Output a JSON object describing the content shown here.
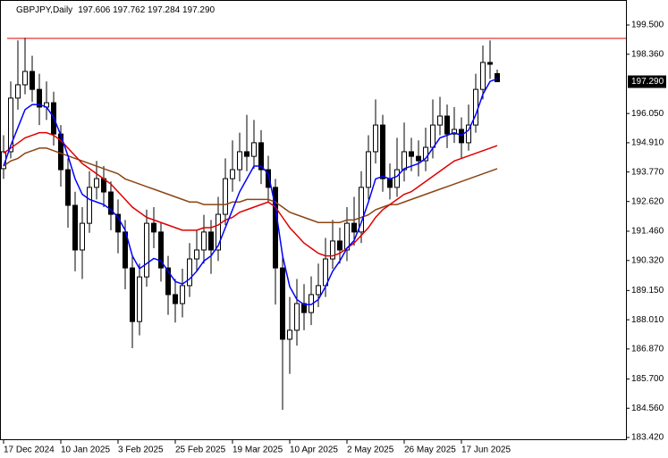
{
  "chart_data": {
    "type": "candlestick",
    "title": "GBPJPY,Daily",
    "subtitle": "197.606 197.762 197.284 197.290",
    "categories": [
      "17 Dec 2024",
      null,
      null,
      null,
      null,
      null,
      null,
      null,
      "10 Jan 2025",
      null,
      null,
      null,
      null,
      null,
      null,
      null,
      "3 Feb 2025",
      null,
      null,
      null,
      null,
      null,
      null,
      null,
      "25 Feb 2025",
      null,
      null,
      null,
      null,
      null,
      null,
      null,
      "19 Mar 2025",
      null,
      null,
      null,
      null,
      null,
      null,
      null,
      "10 Apr 2025",
      null,
      null,
      null,
      null,
      null,
      null,
      null,
      "2 May 2025",
      null,
      null,
      null,
      null,
      null,
      null,
      null,
      "26 May 2025",
      null,
      null,
      null,
      null,
      null,
      null,
      null,
      "17 Jun 2025",
      null,
      null,
      null,
      null,
      null
    ],
    "open": [
      193.9,
      194.56,
      196.65,
      197.17,
      197.69,
      196.99,
      196.3,
      196.47,
      195.25,
      193.86,
      192.47,
      190.73,
      191.77,
      193.17,
      193.51,
      192.99,
      192.12,
      191.43,
      190.03,
      187.94,
      189.68,
      191.77,
      191.43,
      190.03,
      188.99,
      188.64,
      189.34,
      190.38,
      190.73,
      191.43,
      190.73,
      192.12,
      193.51,
      193.86,
      194.56,
      194.38,
      194.91,
      193.86,
      193.17,
      190.03,
      187.25,
      187.6,
      188.64,
      188.29,
      188.99,
      189.34,
      190.38,
      191.08,
      190.73,
      191.77,
      191.43,
      193.17,
      194.56,
      195.6,
      193.51,
      193.17,
      193.86,
      194.56,
      194.38,
      194.21,
      194.73,
      195.6,
      195.95,
      195.25,
      195.43,
      194.91,
      195.6,
      196.99,
      198.04,
      197.606
    ],
    "high": [
      195.2,
      197.3,
      198.9,
      199.0,
      198.3,
      197.6,
      197.3,
      196.9,
      195.6,
      194.3,
      193.0,
      192.4,
      193.8,
      194.2,
      194.0,
      193.4,
      192.7,
      191.9,
      190.5,
      190.2,
      192.3,
      192.4,
      191.8,
      190.5,
      189.6,
      190.0,
      191.0,
      191.5,
      192.1,
      191.9,
      192.8,
      194.3,
      195.0,
      195.3,
      196.0,
      195.8,
      195.4,
      194.4,
      193.5,
      190.6,
      188.9,
      189.6,
      189.4,
      189.7,
      190.2,
      191.2,
      191.9,
      191.6,
      192.4,
      192.8,
      193.8,
      195.2,
      196.6,
      196.0,
      194.1,
      195.1,
      195.7,
      195.1,
      195.0,
      195.5,
      196.6,
      196.7,
      196.4,
      196.3,
      195.9,
      196.4,
      197.6,
      198.7,
      198.9,
      197.762
    ],
    "low": [
      193.5,
      194.3,
      196.2,
      196.8,
      196.5,
      195.6,
      195.8,
      194.8,
      193.2,
      191.6,
      189.9,
      189.6,
      191.4,
      192.7,
      192.4,
      191.5,
      190.6,
      189.2,
      186.9,
      187.4,
      189.3,
      190.8,
      189.5,
      188.2,
      187.9,
      188.1,
      188.9,
      189.9,
      190.2,
      189.8,
      190.3,
      191.7,
      193.0,
      193.4,
      193.8,
      193.9,
      193.3,
      192.6,
      188.6,
      184.5,
      185.9,
      187.0,
      187.6,
      187.8,
      188.5,
      188.9,
      190.0,
      190.2,
      190.3,
      190.9,
      191.0,
      192.7,
      194.1,
      193.0,
      192.7,
      192.8,
      193.4,
      193.8,
      193.6,
      193.8,
      194.3,
      195.2,
      194.7,
      194.9,
      194.3,
      194.6,
      195.3,
      196.6,
      197.4,
      197.284
    ],
    "close": [
      194.56,
      196.65,
      197.17,
      197.69,
      196.99,
      196.3,
      196.47,
      195.25,
      193.86,
      192.47,
      190.73,
      191.77,
      193.17,
      193.51,
      192.99,
      192.12,
      191.43,
      190.03,
      187.94,
      189.68,
      191.77,
      191.43,
      190.03,
      188.99,
      188.64,
      189.34,
      190.38,
      190.73,
      191.43,
      190.73,
      192.12,
      193.51,
      193.86,
      194.56,
      194.38,
      194.91,
      193.86,
      193.17,
      190.03,
      187.25,
      187.6,
      188.64,
      188.29,
      188.99,
      189.34,
      190.38,
      191.08,
      190.73,
      191.77,
      191.43,
      193.17,
      194.56,
      195.6,
      193.51,
      193.17,
      193.86,
      194.56,
      194.38,
      194.21,
      194.73,
      195.6,
      195.95,
      195.25,
      195.43,
      194.91,
      195.6,
      196.99,
      198.04,
      197.97,
      197.29
    ],
    "lines": [
      {
        "color": "#8b4513",
        "values": [
          194.0,
          194.2,
          194.3,
          194.5,
          194.6,
          194.7,
          194.7,
          194.6,
          194.5,
          194.4,
          194.3,
          194.2,
          194.1,
          194.0,
          193.9,
          193.8,
          193.7,
          193.5,
          193.4,
          193.3,
          193.2,
          193.1,
          193.0,
          192.9,
          192.8,
          192.7,
          192.6,
          192.6,
          192.5,
          192.5,
          192.5,
          192.5,
          192.6,
          192.6,
          192.7,
          192.7,
          192.7,
          192.7,
          192.6,
          192.4,
          192.2,
          192.1,
          192.0,
          191.9,
          191.8,
          191.8,
          191.8,
          191.8,
          191.9,
          191.9,
          192.0,
          192.1,
          192.3,
          192.4,
          192.5,
          192.5,
          192.6,
          192.7,
          192.8,
          192.9,
          193.0,
          193.1,
          193.2,
          193.3,
          193.4,
          193.5,
          193.6,
          193.7,
          193.8,
          193.9
        ]
      },
      {
        "color": "#e00000",
        "values": [
          194.5,
          194.7,
          194.9,
          195.1,
          195.2,
          195.3,
          195.3,
          195.2,
          195.0,
          194.7,
          194.4,
          194.1,
          193.9,
          193.7,
          193.5,
          193.3,
          193.0,
          192.7,
          192.4,
          192.2,
          192.0,
          191.9,
          191.8,
          191.7,
          191.6,
          191.5,
          191.5,
          191.5,
          191.6,
          191.6,
          191.7,
          191.9,
          192.0,
          192.2,
          192.3,
          192.4,
          192.5,
          192.6,
          192.4,
          192.0,
          191.6,
          191.3,
          191.0,
          190.8,
          190.6,
          190.5,
          190.5,
          190.6,
          190.8,
          191.0,
          191.3,
          191.6,
          192.0,
          192.3,
          192.5,
          192.7,
          192.9,
          193.0,
          193.2,
          193.4,
          193.6,
          193.8,
          194.0,
          194.2,
          194.3,
          194.4,
          194.5,
          194.6,
          194.7,
          194.8
        ]
      },
      {
        "color": "#0000ff",
        "values": [
          194.0,
          194.8,
          195.5,
          196.2,
          196.4,
          196.4,
          196.3,
          195.9,
          195.2,
          194.4,
          193.5,
          192.9,
          192.7,
          192.6,
          192.5,
          192.3,
          192.0,
          191.5,
          190.5,
          190.0,
          190.2,
          190.4,
          190.3,
          189.9,
          189.5,
          189.4,
          189.6,
          189.9,
          190.3,
          190.5,
          190.9,
          191.6,
          192.3,
          193.0,
          193.5,
          194.0,
          194.0,
          193.7,
          192.4,
          190.5,
          189.3,
          188.8,
          188.6,
          188.6,
          188.8,
          189.3,
          189.9,
          190.3,
          190.8,
          191.1,
          191.8,
          192.6,
          193.5,
          193.6,
          193.5,
          193.6,
          193.9,
          194.0,
          194.1,
          194.3,
          194.7,
          195.1,
          195.2,
          195.3,
          195.2,
          195.4,
          196.0,
          196.8,
          197.3,
          197.4
        ]
      }
    ],
    "hline": {
      "value": 198.98,
      "color": "#e00000"
    },
    "last_price": {
      "value": 197.29,
      "label": "197.290"
    },
    "ylim": [
      183.316,
      200.475
    ],
    "yticks": [
      {
        "value": 199.5,
        "label": "199.500"
      },
      {
        "value": 198.36,
        "label": "198.360"
      },
      {
        "value": 196.05,
        "label": "196.050"
      },
      {
        "value": 194.91,
        "label": "194.910"
      },
      {
        "value": 193.77,
        "label": "193.770"
      },
      {
        "value": 192.62,
        "label": "192.620"
      },
      {
        "value": 191.46,
        "label": "191.460"
      },
      {
        "value": 190.32,
        "label": "190.320"
      },
      {
        "value": 189.15,
        "label": "189.150"
      },
      {
        "value": 188.01,
        "label": "188.010"
      },
      {
        "value": 186.87,
        "label": "186.870"
      },
      {
        "value": 185.7,
        "label": "185.700"
      },
      {
        "value": 184.56,
        "label": "184.560"
      },
      {
        "value": 183.42,
        "label": "183.420"
      }
    ],
    "grid": false
  }
}
